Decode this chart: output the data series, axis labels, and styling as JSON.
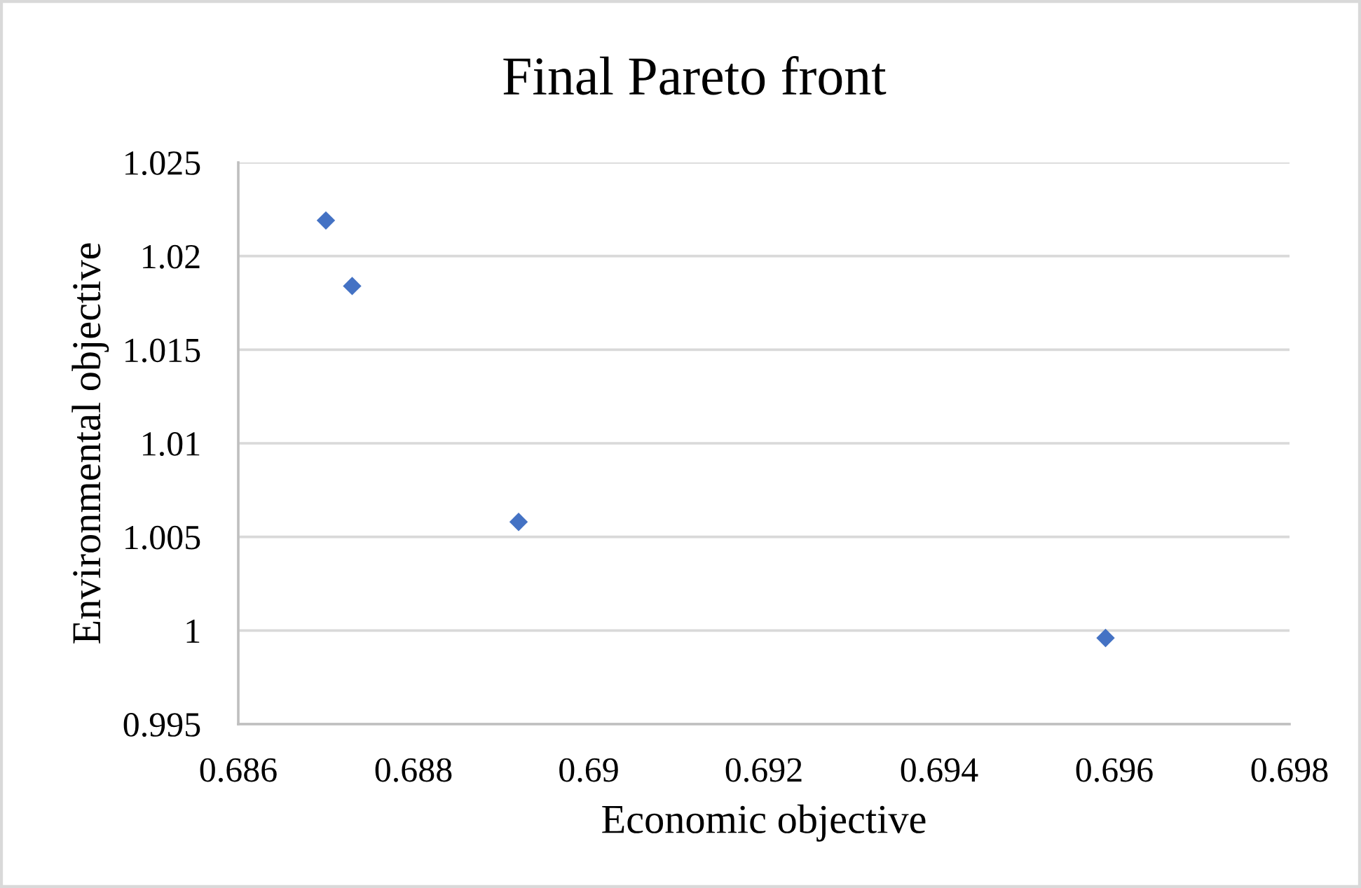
{
  "chart_data": {
    "type": "scatter",
    "title": "Final Pareto front",
    "xlabel": "Economic objective",
    "ylabel": "Environmental objective",
    "x": [
      0.687,
      0.6873,
      0.6892,
      0.6959
    ],
    "series": [
      {
        "color": "#4472c4",
        "values": [
          1.0219,
          1.0184,
          1.0058,
          0.9996
        ]
      }
    ],
    "marker": "diamond",
    "grid": "y",
    "xlim": [
      0.686,
      0.698
    ],
    "xticks": [
      0.686,
      0.688,
      0.69,
      0.692,
      0.694,
      0.696,
      0.698
    ],
    "ylim": [
      0.995,
      1.025
    ],
    "yticks": [
      0.995,
      1,
      1.005,
      1.01,
      1.015,
      1.02,
      1.025
    ]
  }
}
